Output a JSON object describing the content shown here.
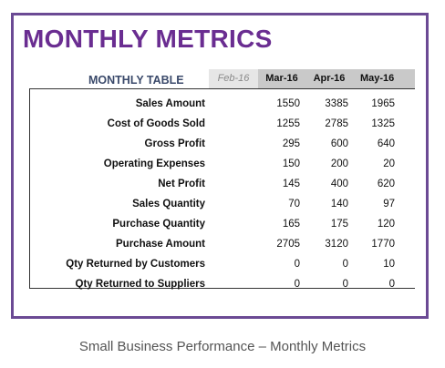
{
  "title": "MONTHLY METRICS",
  "table_label": "MONTHLY TABLE",
  "months": [
    {
      "label": "Feb-16",
      "style": "faded"
    },
    {
      "label": "Mar-16",
      "style": "active"
    },
    {
      "label": "Apr-16",
      "style": "active"
    },
    {
      "label": "May-16",
      "style": "active"
    }
  ],
  "rows": [
    {
      "label": "Sales Amount",
      "values": [
        "1550",
        "3385",
        "1965"
      ]
    },
    {
      "label": "Cost of Goods Sold",
      "values": [
        "1255",
        "2785",
        "1325"
      ]
    },
    {
      "label": "Gross Profit",
      "values": [
        "295",
        "600",
        "640"
      ]
    },
    {
      "label": "Operating Expenses",
      "values": [
        "150",
        "200",
        "20"
      ]
    },
    {
      "label": "Net Profit",
      "values": [
        "145",
        "400",
        "620"
      ]
    },
    {
      "label": "Sales Quantity",
      "values": [
        "70",
        "140",
        "97"
      ]
    },
    {
      "label": "Purchase Quantity",
      "values": [
        "165",
        "175",
        "120"
      ]
    },
    {
      "label": "Purchase Amount",
      "values": [
        "2705",
        "3120",
        "1770"
      ]
    },
    {
      "label": "Qty Returned by Customers",
      "values": [
        "0",
        "0",
        "10"
      ]
    },
    {
      "label": "Qty Returned to Suppliers",
      "values": [
        "0",
        "0",
        "0"
      ]
    }
  ],
  "caption": "Small Business Performance – Monthly Metrics",
  "colors": {
    "title": "#6a2d91",
    "frame": "#6b4a94",
    "table_label": "#3b4a6b",
    "header_active": "#c9c9c9",
    "header_faded": "#e6e6e6"
  }
}
